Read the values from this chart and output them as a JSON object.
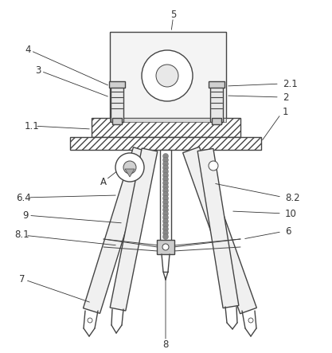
{
  "background_color": "#ffffff",
  "line_color": "#444444",
  "label_color": "#333333",
  "font_size": 8.5,
  "fig_w": 4.17,
  "fig_h": 4.43,
  "dpi": 100
}
